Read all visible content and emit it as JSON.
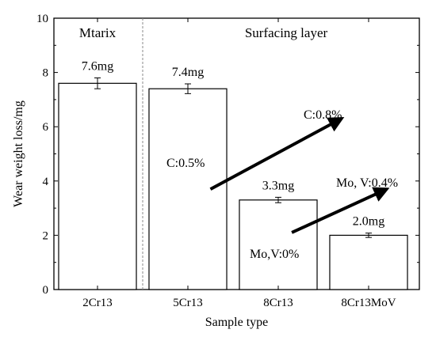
{
  "chart_data": {
    "type": "bar",
    "categories": [
      "2Cr13",
      "5Cr13",
      "8Cr13",
      "8Cr13MoV"
    ],
    "values": [
      7.6,
      7.4,
      3.3,
      2.0
    ],
    "errors": [
      0.2,
      0.18,
      0.1,
      0.08
    ],
    "data_labels": [
      "7.6mg",
      "7.4mg",
      "3.3mg",
      "2.0mg"
    ],
    "xlabel": "Sample type",
    "ylabel": "Wear weight loss/mg",
    "ylim": [
      0,
      10
    ],
    "yticks": [
      0,
      2,
      4,
      6,
      8,
      10
    ],
    "region_labels": {
      "left": "Mtarix",
      "right": "Surfacing layer"
    },
    "divider_after_category": "2Cr13",
    "annotations": [
      {
        "text": "C:0.5%"
      },
      {
        "text": "C:0.8%"
      },
      {
        "text": "Mo,V:0%"
      },
      {
        "text": "Mo, V:0.4%"
      }
    ],
    "arrows": [
      {
        "from": [
          1.25,
          3.7
        ],
        "to": [
          2.7,
          6.3
        ]
      },
      {
        "from": [
          2.15,
          2.1
        ],
        "to": [
          3.2,
          3.7
        ]
      }
    ],
    "bar_color": "#ffffff",
    "line_color": "#000000",
    "divider_color": "#888888"
  }
}
